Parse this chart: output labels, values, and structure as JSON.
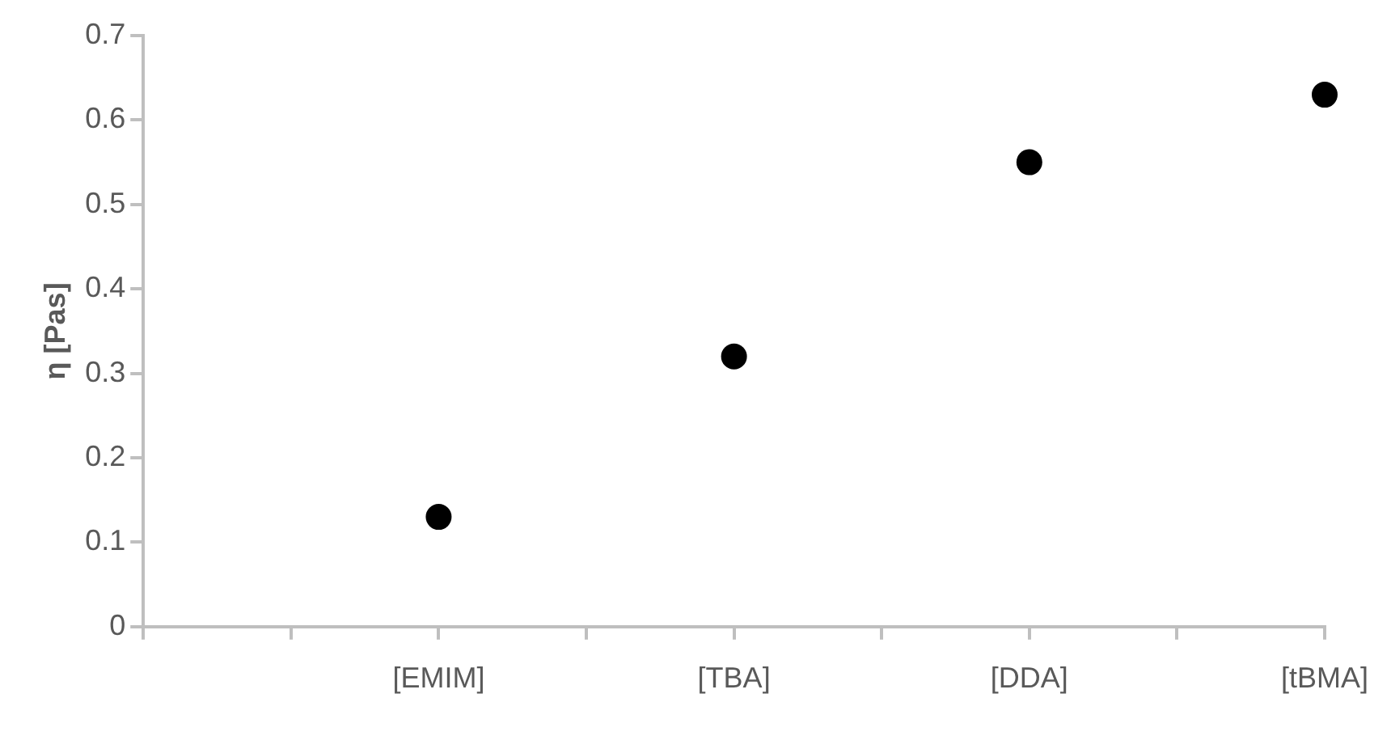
{
  "chart_data": {
    "type": "scatter",
    "ylabel": "η [Pas]",
    "categories": [
      null,
      null,
      "[EMIM]",
      null,
      "[TBA]",
      null,
      "[DDA]",
      null,
      "[tBMA]"
    ],
    "values": [
      null,
      null,
      0.13,
      null,
      0.32,
      null,
      0.55,
      null,
      0.63
    ],
    "color": "#000000",
    "marker": "circle",
    "ylim": [
      0,
      0.7
    ],
    "yticks": [
      0,
      0.1,
      0.2,
      0.3,
      0.4,
      0.5,
      0.6,
      0.7
    ],
    "grid": false,
    "legend": false
  }
}
